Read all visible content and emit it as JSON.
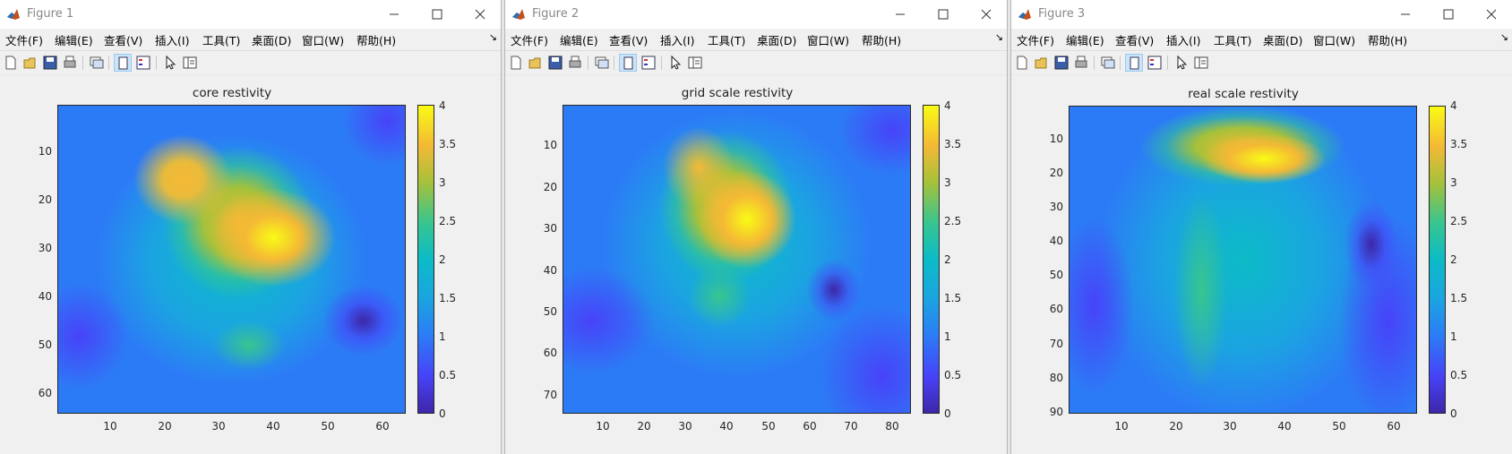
{
  "windows": [
    {
      "title": "Figure 1",
      "menu": [
        "文件(F)",
        "编辑(E)",
        "查看(V)",
        "插入(I)",
        "工具(T)",
        "桌面(D)",
        "窗口(W)",
        "帮助(H)"
      ],
      "plot": {
        "title": "core restivity",
        "x_ticks": [
          "10",
          "20",
          "30",
          "40",
          "50",
          "60"
        ],
        "y_ticks": [
          "10",
          "20",
          "30",
          "40",
          "50",
          "60"
        ],
        "colorbar_ticks": [
          "0",
          "0.5",
          "1",
          "1.5",
          "2",
          "2.5",
          "3",
          "3.5",
          "4"
        ]
      }
    },
    {
      "title": "Figure 2",
      "menu": [
        "文件(F)",
        "编辑(E)",
        "查看(V)",
        "插入(I)",
        "工具(T)",
        "桌面(D)",
        "窗口(W)",
        "帮助(H)"
      ],
      "plot": {
        "title": "grid scale restivity",
        "x_ticks": [
          "10",
          "20",
          "30",
          "40",
          "50",
          "60",
          "70",
          "80"
        ],
        "y_ticks": [
          "10",
          "20",
          "30",
          "40",
          "50",
          "60",
          "70"
        ],
        "colorbar_ticks": [
          "0",
          "0.5",
          "1",
          "1.5",
          "2",
          "2.5",
          "3",
          "3.5",
          "4"
        ]
      }
    },
    {
      "title": "Figure 3",
      "menu": [
        "文件(F)",
        "编辑(E)",
        "查看(V)",
        "插入(I)",
        "工具(T)",
        "桌面(D)",
        "窗口(W)",
        "帮助(H)"
      ],
      "plot": {
        "title": "real scale restivity",
        "x_ticks": [
          "10",
          "20",
          "30",
          "40",
          "50",
          "60"
        ],
        "y_ticks": [
          "10",
          "20",
          "30",
          "40",
          "50",
          "60",
          "70",
          "80",
          "90"
        ],
        "colorbar_ticks": [
          "0",
          "0.5",
          "1",
          "1.5",
          "2",
          "2.5",
          "3",
          "3.5",
          "4"
        ]
      }
    }
  ],
  "menu_overflow_icon": "chevron-double-icon",
  "toolbar_icons": [
    "new-figure-icon",
    "open-file-icon",
    "save-icon",
    "print-icon",
    "link-plot-icon",
    "dock-icon",
    "legend-icon",
    "pointer-icon",
    "property-inspector-icon"
  ],
  "colormap": [
    "#3e26a8",
    "#4743f8",
    "#2c7bf6",
    "#1ba4e1",
    "#0cbbc7",
    "#38c58f",
    "#a6c13a",
    "#f4b935",
    "#f9fb15"
  ]
}
